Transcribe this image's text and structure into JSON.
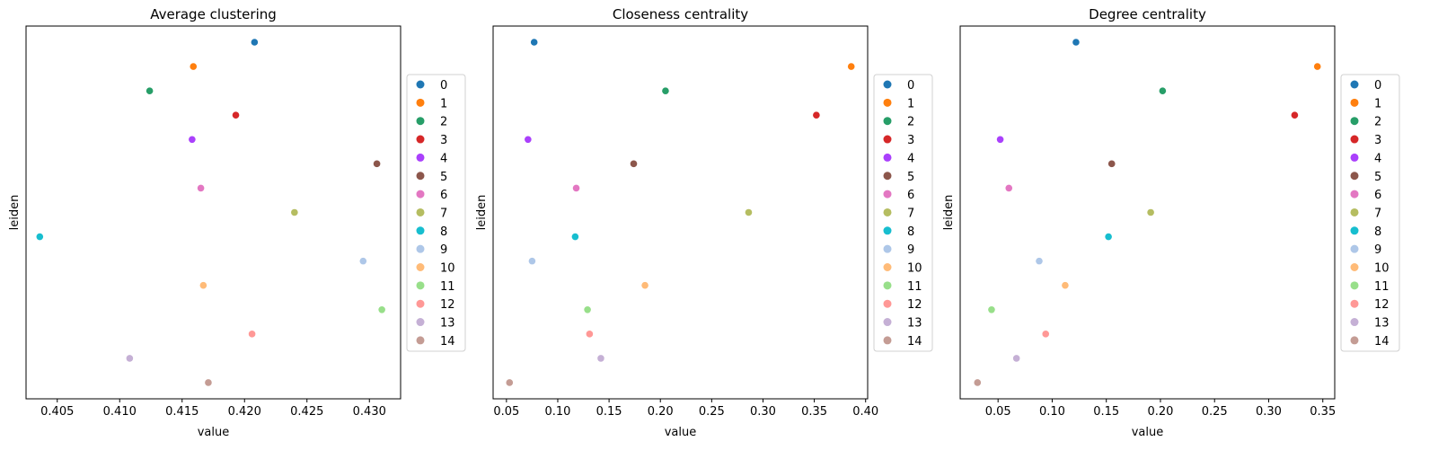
{
  "colors": [
    "#1f77b4",
    "#ff7f0e",
    "#279e68",
    "#d62728",
    "#aa40fc",
    "#8c564b",
    "#e377c2",
    "#b5bd61",
    "#17becf",
    "#aec7e8",
    "#ffbb78",
    "#98df8a",
    "#ff9896",
    "#c5b0d5",
    "#c49c94"
  ],
  "chart_data": [
    {
      "type": "scatter",
      "title": "Average clustering",
      "xlabel": "value",
      "ylabel": "leiden",
      "xlim": [
        0.4025,
        0.4325
      ],
      "xticks": [
        0.405,
        0.41,
        0.415,
        0.42,
        0.425,
        0.43
      ],
      "xtick_labels": [
        "0.405",
        "0.410",
        "0.415",
        "0.420",
        "0.425",
        "0.430"
      ],
      "categories": [
        "0",
        "1",
        "2",
        "3",
        "4",
        "5",
        "6",
        "7",
        "8",
        "9",
        "10",
        "11",
        "12",
        "13",
        "14"
      ],
      "values": [
        0.4208,
        0.4159,
        0.4124,
        0.4193,
        0.4158,
        0.4306,
        0.4165,
        0.424,
        0.4036,
        0.4295,
        0.4167,
        0.431,
        0.4206,
        0.4108,
        0.4171
      ],
      "legend": "right",
      "grid": false
    },
    {
      "type": "scatter",
      "title": "Closeness centrality",
      "xlabel": "value",
      "ylabel": "leiden",
      "xlim": [
        0.037,
        0.402
      ],
      "xticks": [
        0.05,
        0.1,
        0.15,
        0.2,
        0.25,
        0.3,
        0.35,
        0.4
      ],
      "xtick_labels": [
        "0.05",
        "0.10",
        "0.15",
        "0.20",
        "0.25",
        "0.30",
        "0.35",
        "0.40"
      ],
      "categories": [
        "0",
        "1",
        "2",
        "3",
        "4",
        "5",
        "6",
        "7",
        "8",
        "9",
        "10",
        "11",
        "12",
        "13",
        "14"
      ],
      "values": [
        0.077,
        0.386,
        0.205,
        0.352,
        0.071,
        0.174,
        0.118,
        0.286,
        0.117,
        0.075,
        0.185,
        0.129,
        0.131,
        0.142,
        0.053
      ],
      "legend": "right",
      "grid": false
    },
    {
      "type": "scatter",
      "title": "Degree centrality",
      "xlabel": "value",
      "ylabel": "leiden",
      "xlim": [
        0.015,
        0.361
      ],
      "xticks": [
        0.05,
        0.1,
        0.15,
        0.2,
        0.25,
        0.3,
        0.35
      ],
      "xtick_labels": [
        "0.05",
        "0.10",
        "0.15",
        "0.20",
        "0.25",
        "0.30",
        "0.35"
      ],
      "categories": [
        "0",
        "1",
        "2",
        "3",
        "4",
        "5",
        "6",
        "7",
        "8",
        "9",
        "10",
        "11",
        "12",
        "13",
        "14"
      ],
      "values": [
        0.122,
        0.345,
        0.202,
        0.324,
        0.052,
        0.155,
        0.06,
        0.191,
        0.152,
        0.088,
        0.112,
        0.044,
        0.094,
        0.067,
        0.031
      ],
      "legend": "right",
      "grid": false
    }
  ]
}
